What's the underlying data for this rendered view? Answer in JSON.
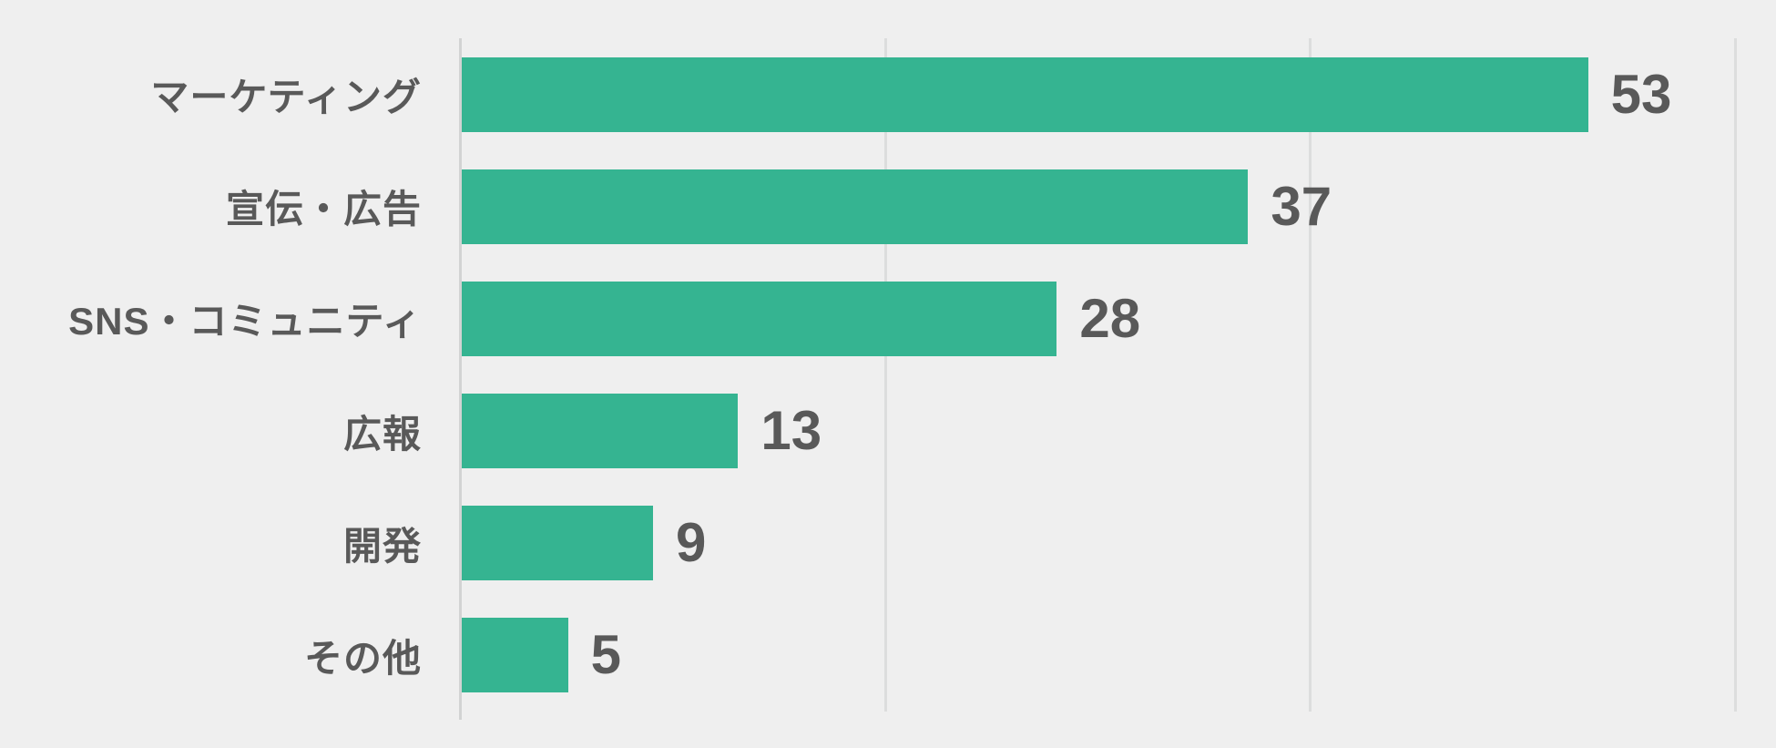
{
  "chart_data": {
    "type": "bar",
    "orientation": "horizontal",
    "title": "",
    "xlabel": "",
    "ylabel": "",
    "categories": [
      "マーケティング",
      "宣伝・広告",
      "SNS・コミュニティ",
      "広報",
      "開発",
      "その他"
    ],
    "values": [
      53,
      37,
      28,
      13,
      9,
      5
    ],
    "xlim": [
      0,
      60
    ],
    "gridlines": [
      0,
      20,
      40,
      60
    ],
    "grid": "vertical-only",
    "legend_position": "none",
    "axis_tick_labels_visible": false,
    "value_labels_visible": true,
    "colors": {
      "bar": "#35b491",
      "background": "#efefef",
      "gridline": "#dcdddd",
      "axis_line": "#d2d3d3",
      "category_label": "#595959",
      "value_label": "#595959"
    }
  }
}
